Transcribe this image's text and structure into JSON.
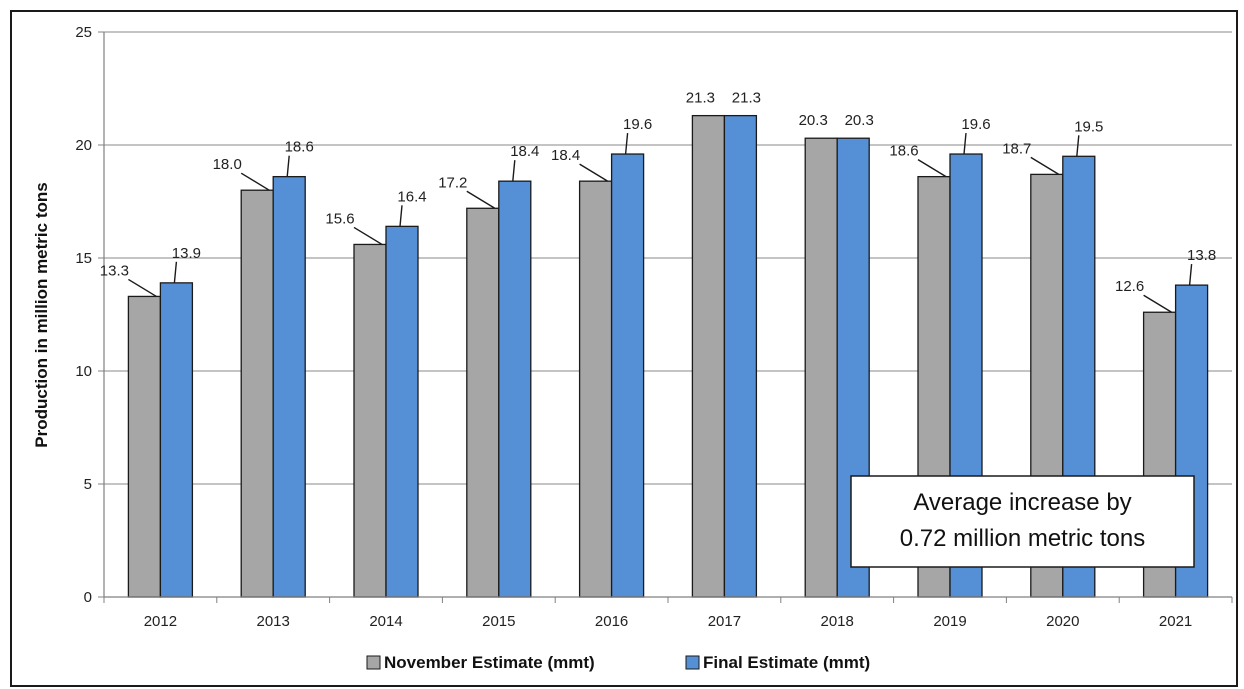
{
  "chart_data": {
    "type": "bar",
    "categories": [
      "2012",
      "2013",
      "2014",
      "2015",
      "2016",
      "2017",
      "2018",
      "2019",
      "2020",
      "2021"
    ],
    "series": [
      {
        "name": "November Estimate  (mmt)",
        "values": [
          13.3,
          18.0,
          15.6,
          17.2,
          18.4,
          21.3,
          20.3,
          18.6,
          18.7,
          12.6
        ],
        "labels": [
          "13.3",
          "18.0",
          "15.6",
          "17.2",
          "18.4",
          "21.3",
          "20.3",
          "18.6",
          "18.7",
          "12.6"
        ],
        "color": "#a6a6a6"
      },
      {
        "name": "Final Estimate (mmt)",
        "values": [
          13.9,
          18.6,
          16.4,
          18.4,
          19.6,
          21.3,
          20.3,
          19.6,
          19.5,
          13.8
        ],
        "labels": [
          "13.9",
          "18.6",
          "16.4",
          "18.4",
          "19.6",
          "21.3",
          "20.3",
          "19.6",
          "19.5",
          "13.8"
        ],
        "color": "#5590d6"
      }
    ],
    "ylabel": "Production in million metric tons",
    "xlabel": "",
    "ylim": [
      0,
      25
    ],
    "yticks": [
      0,
      5,
      10,
      15,
      20,
      25
    ],
    "grid": true,
    "legend": "bottom",
    "annotation": [
      "Average increase by",
      "0.72 million metric tons"
    ]
  }
}
